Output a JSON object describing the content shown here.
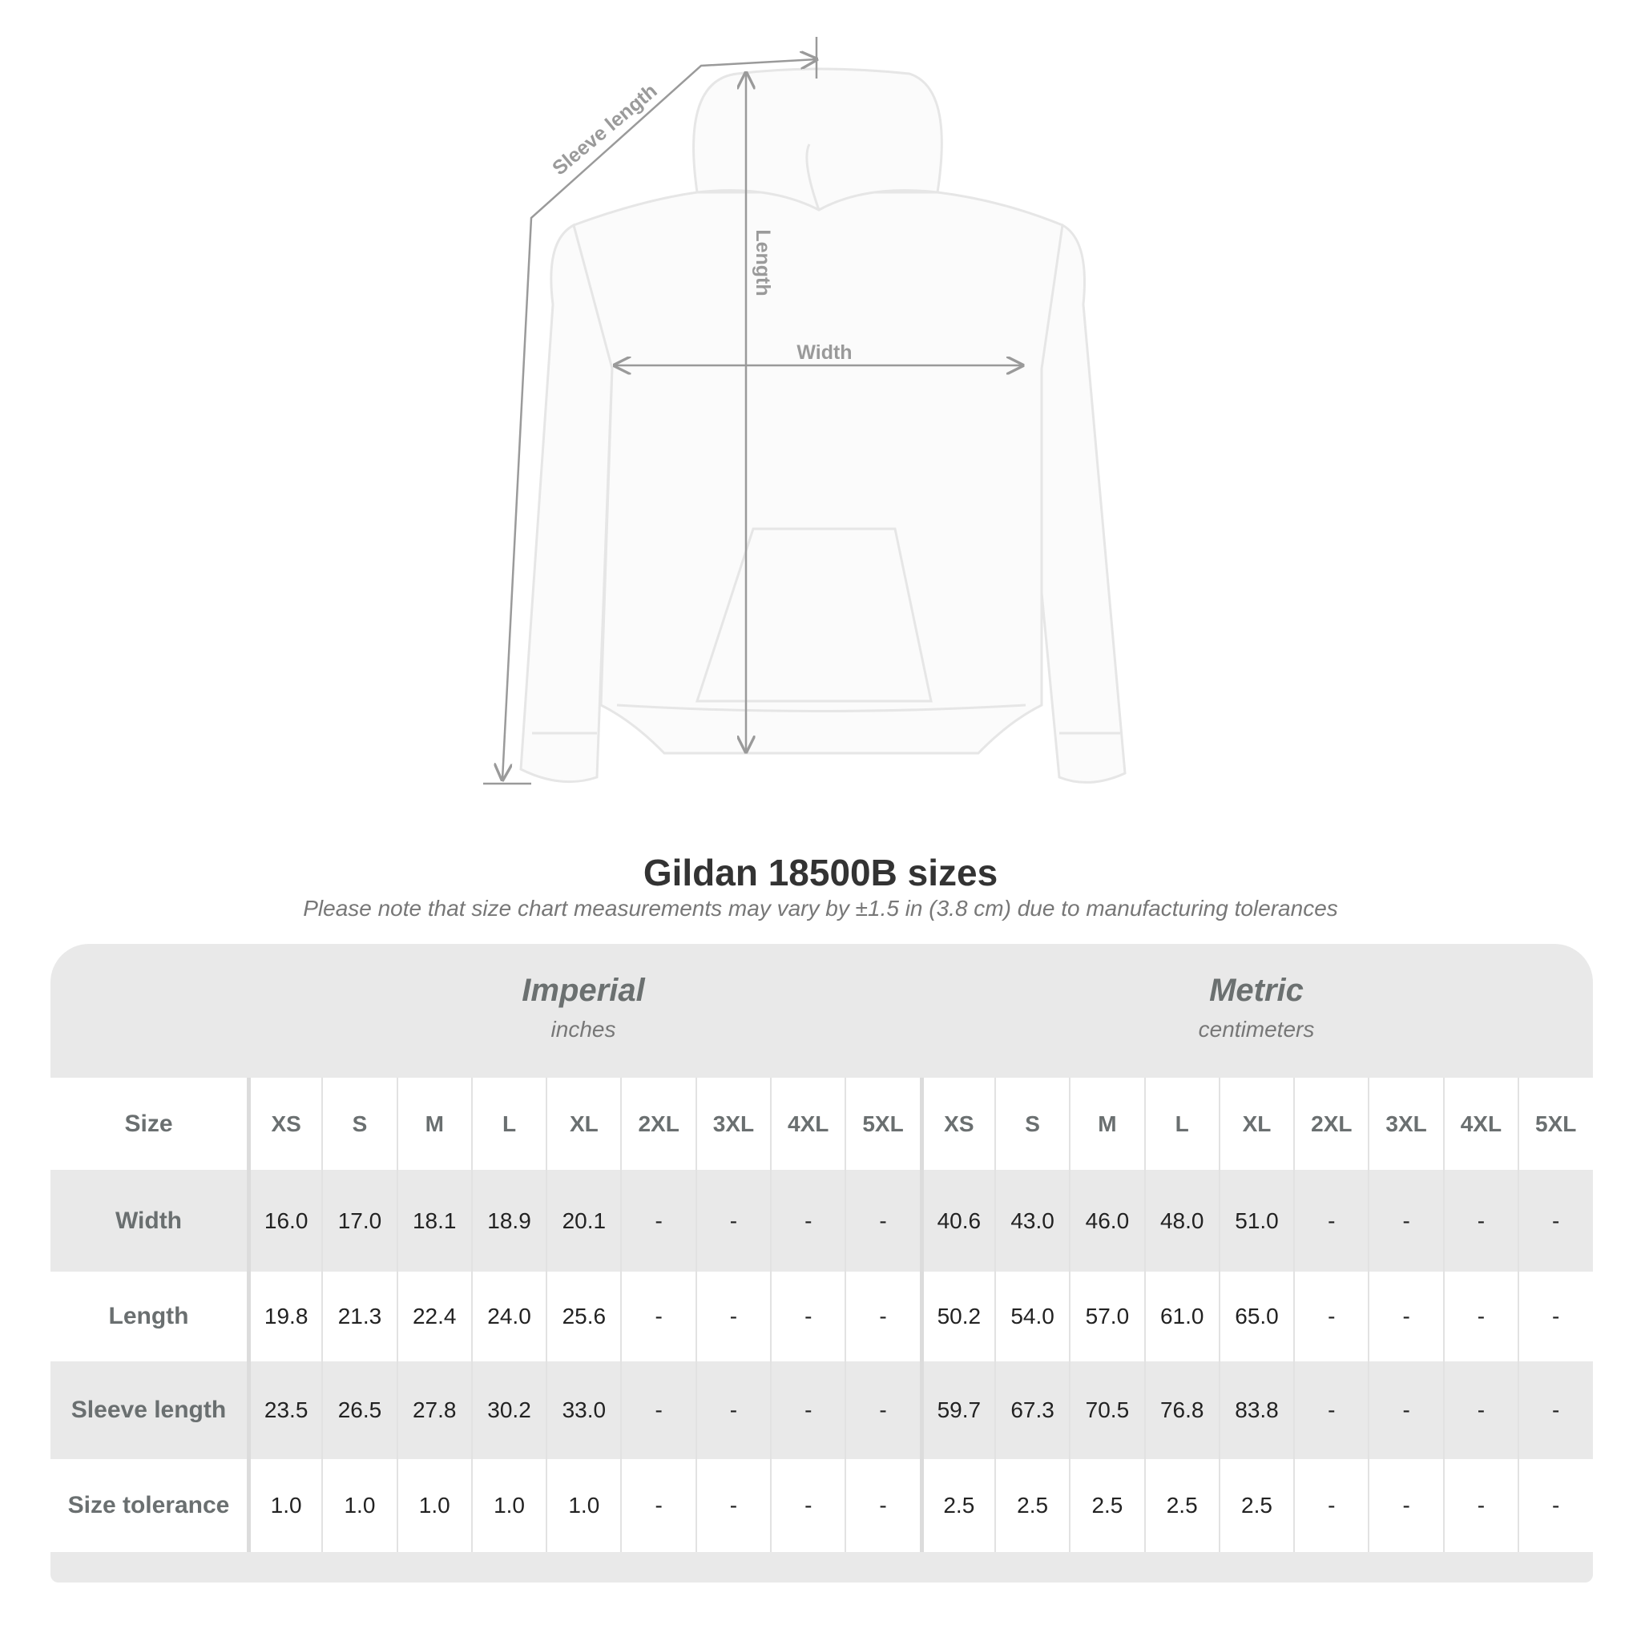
{
  "figure": {
    "labels": {
      "sleeve": "Sleeve length",
      "length": "Length",
      "width": "Width"
    },
    "garment_color": "#ffffff",
    "line_color": "#9a9a9a"
  },
  "title": "Gildan 18500B sizes",
  "subtitle": "Please note that size chart measurements may vary by ±1.5 in (3.8 cm) due to manufacturing tolerances",
  "table": {
    "imperial": {
      "title": "Imperial",
      "unit": "inches"
    },
    "metric": {
      "title": "Metric",
      "unit": "centimeters"
    },
    "size_label": "Size",
    "sizes": [
      "XS",
      "S",
      "M",
      "L",
      "XL",
      "2XL",
      "3XL",
      "4XL",
      "5XL"
    ],
    "rows": [
      {
        "label": "Width",
        "imperial": [
          "16.0",
          "17.0",
          "18.1",
          "18.9",
          "20.1",
          "-",
          "-",
          "-",
          "-"
        ],
        "metric": [
          "40.6",
          "43.0",
          "46.0",
          "48.0",
          "51.0",
          "-",
          "-",
          "-",
          "-"
        ]
      },
      {
        "label": "Length",
        "imperial": [
          "19.8",
          "21.3",
          "22.4",
          "24.0",
          "25.6",
          "-",
          "-",
          "-",
          "-"
        ],
        "metric": [
          "50.2",
          "54.0",
          "57.0",
          "61.0",
          "65.0",
          "-",
          "-",
          "-",
          "-"
        ]
      },
      {
        "label": "Sleeve length",
        "imperial": [
          "23.5",
          "26.5",
          "27.8",
          "30.2",
          "33.0",
          "-",
          "-",
          "-",
          "-"
        ],
        "metric": [
          "59.7",
          "67.3",
          "70.5",
          "76.8",
          "83.8",
          "-",
          "-",
          "-",
          "-"
        ]
      },
      {
        "label": "Size tolerance",
        "imperial": [
          "1.0",
          "1.0",
          "1.0",
          "1.0",
          "1.0",
          "-",
          "-",
          "-",
          "-"
        ],
        "metric": [
          "2.5",
          "2.5",
          "2.5",
          "2.5",
          "2.5",
          "-",
          "-",
          "-",
          "-"
        ]
      }
    ]
  }
}
